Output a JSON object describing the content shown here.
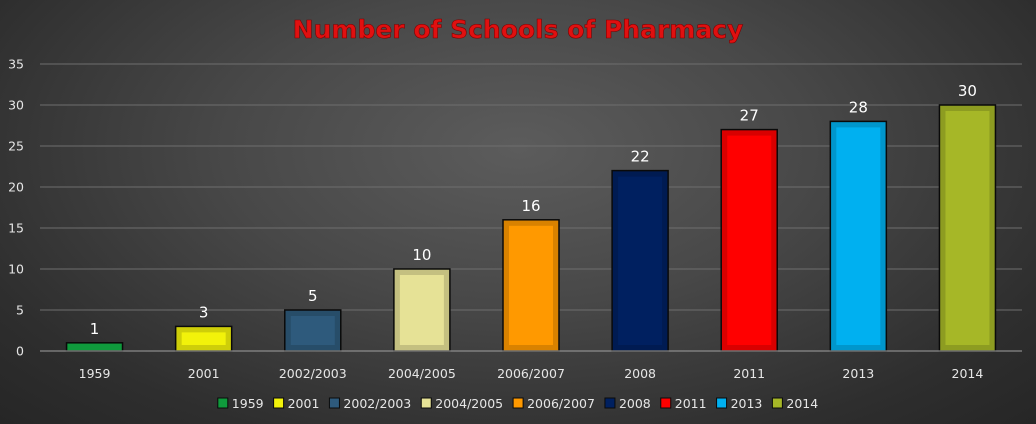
{
  "chart_data": {
    "type": "bar",
    "title": "Number of Schools of Pharmacy",
    "categories": [
      "1959",
      "2001",
      "2002/2003",
      "2004/2005",
      "2006/2007",
      "2008",
      "2011",
      "2013",
      "2014"
    ],
    "values": [
      1,
      3,
      5,
      10,
      16,
      22,
      27,
      28,
      30
    ],
    "colors": [
      "#0f9a3c",
      "#f2f20a",
      "#2e5a7c",
      "#e6e296",
      "#ff9900",
      "#002060",
      "#ff0000",
      "#00b0f0",
      "#a6b727"
    ],
    "ylim": [
      0,
      35
    ],
    "yticks": [
      0,
      5,
      10,
      15,
      20,
      25,
      30,
      35
    ],
    "grid": true,
    "legend": "bottom",
    "data_labels": true
  }
}
